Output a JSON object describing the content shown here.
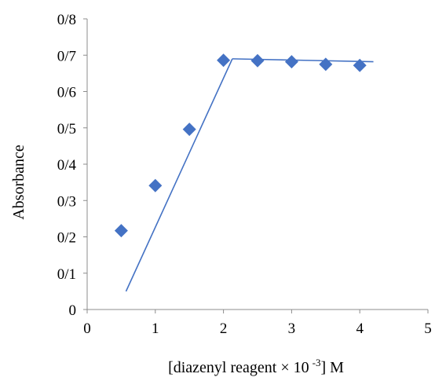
{
  "chart_data": {
    "type": "scatter",
    "title": "",
    "xlabel": "[diazenyl  reagent × 10",
    "xlabel_superscript": "-3",
    "xlabel_suffix": "] M",
    "ylabel": "Absorbance",
    "xlim": [
      0,
      5
    ],
    "ylim": [
      0,
      0.8
    ],
    "x_ticks": [
      0,
      1,
      2,
      3,
      4,
      5
    ],
    "y_ticks": [
      0,
      0.1,
      0.2,
      0.3,
      0.4,
      0.5,
      0.6,
      0.7,
      0.8
    ],
    "x_tick_labels": [
      "0",
      "1",
      "2",
      "3",
      "4",
      "5"
    ],
    "y_tick_labels": [
      "0",
      "0/1",
      "0/2",
      "0/3",
      "0/4",
      "0/5",
      "0/6",
      "0/7",
      "0/8"
    ],
    "grid": false,
    "legend": "none",
    "marker_color": "#4472C4",
    "line_color": "#4472C4",
    "series": [
      {
        "x": [
          0.5,
          1.0,
          1.5,
          2.0,
          2.5,
          3.0,
          3.5,
          4.0
        ],
        "y": [
          0.217,
          0.341,
          0.496,
          0.686,
          0.685,
          0.682,
          0.675,
          0.672
        ]
      }
    ],
    "trendlines": [
      {
        "x": [
          0.57,
          2.13
        ],
        "y": [
          0.05,
          0.69
        ]
      },
      {
        "x": [
          2.13,
          4.2
        ],
        "y": [
          0.69,
          0.682
        ]
      }
    ]
  }
}
